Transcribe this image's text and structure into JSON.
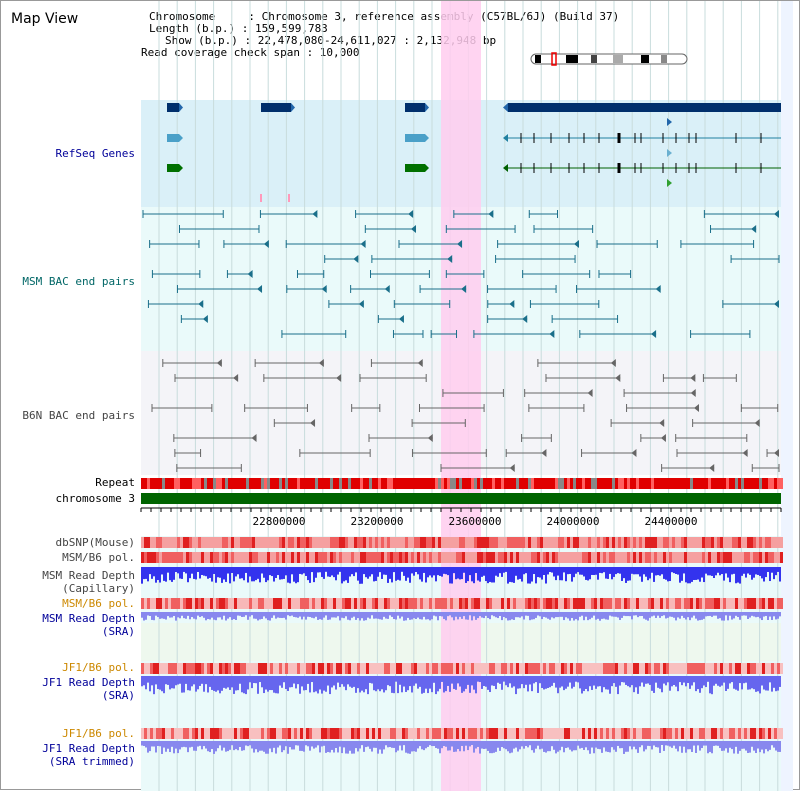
{
  "title": "Map View",
  "info": {
    "chromosome": "Chromosome     : Chromosome 3, reference assembly (C57BL/6J) (Build 37)",
    "length": "Length (b.p.) : 159,599,783",
    "show": "Show (b.p.) : 22,478,080-24,611,027 : 2,132,948 bp",
    "coverage": "Read coverage check span : 10,000"
  },
  "tracks": {
    "refseq": "RefSeq Genes",
    "msm_bac": "MSM BAC end pairs",
    "b6n_bac": "B6N BAC end pairs",
    "repeat": "Repeat",
    "chromosome": "chromosome 3",
    "dbsnp": "dbSNP(Mouse)",
    "msm_b6_pol1": "MSM/B6 pol.",
    "msm_depth_cap_1": "MSM Read Depth",
    "msm_depth_cap_2": "(Capillary)",
    "msm_b6_pol2": "MSM/B6 pol.",
    "msm_depth_sra_1": "MSM Read Depth",
    "msm_depth_sra_2": "(SRA)",
    "jf1_b6_pol1": "JF1/B6 pol.",
    "jf1_depth_sra_1": "JF1 Read Depth",
    "jf1_depth_sra_2": "(SRA)",
    "jf1_b6_pol2": "JF1/B6 pol.",
    "jf1_depth_trim_1": "JF1 Read Depth",
    "jf1_depth_trim_2": "(SRA trimmed)"
  },
  "axis": {
    "ticks": [
      "22800000",
      "23200000",
      "23600000",
      "24000000",
      "24400000"
    ]
  },
  "colors": {
    "label_blue": "#000099",
    "label_teal": "#006666",
    "label_gray": "#444444",
    "label_orange": "#cc8800",
    "highlight": "#ffccee",
    "gene_dark": "#002f6c",
    "chrom_green": "#006400"
  }
}
